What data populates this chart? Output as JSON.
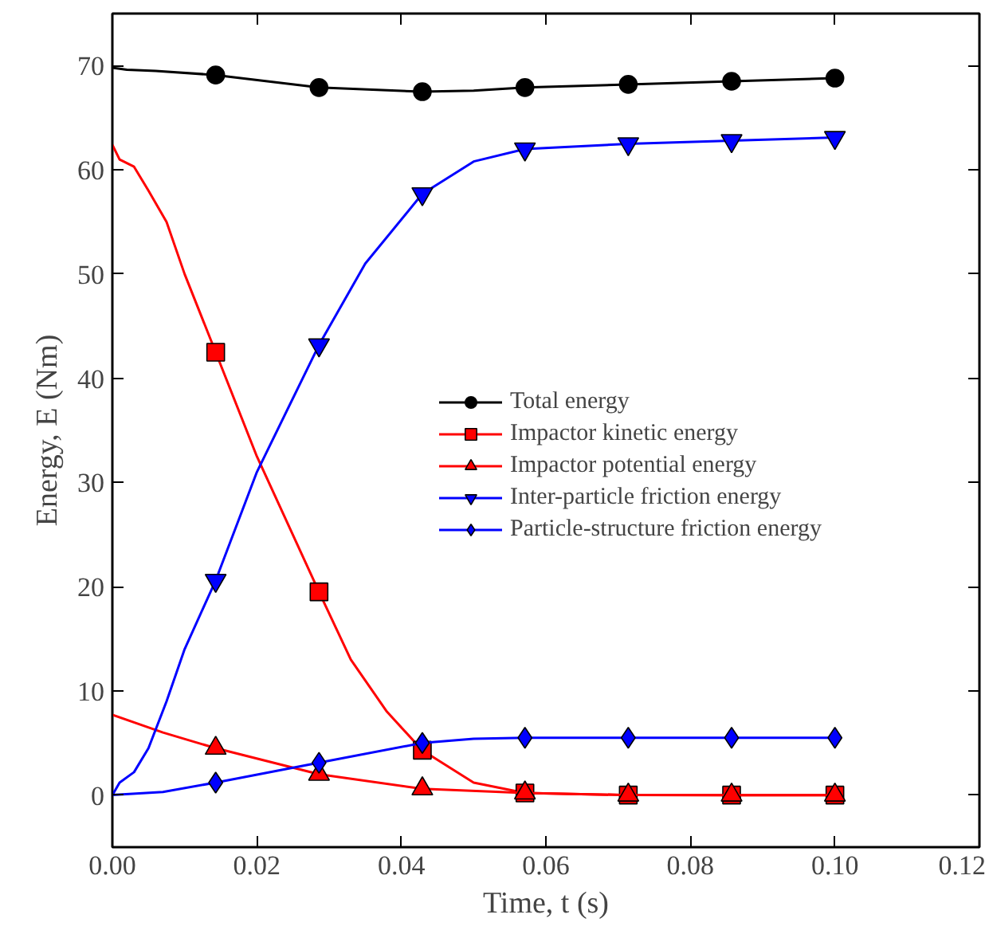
{
  "chart_data": {
    "type": "line",
    "xlabel": "Time, t (s)",
    "ylabel": "Energy, E (Nm)",
    "xlim": [
      0,
      0.12
    ],
    "ylim": [
      -5,
      75
    ],
    "xticks": [
      {
        "value": 0,
        "label": "0.00"
      },
      {
        "value": 0.02,
        "label": "0.02"
      },
      {
        "value": 0.04,
        "label": "0.04"
      },
      {
        "value": 0.06,
        "label": "0.06"
      },
      {
        "value": 0.08,
        "label": "0.08"
      },
      {
        "value": 0.1,
        "label": "0.10"
      },
      {
        "value": 0.12,
        "label": "0.12"
      }
    ],
    "yticks": [
      0,
      10,
      20,
      30,
      40,
      50,
      60,
      70
    ],
    "grid": false,
    "legend": "right",
    "line_style": "solid",
    "x": [
      0.0143,
      0.0286,
      0.0429,
      0.0571,
      0.0714,
      0.0857,
      0.1
    ],
    "series": [
      {
        "color": "#000000",
        "x": [
          0,
          0.002,
          0.006,
          0.0143,
          0.0286,
          0.0429,
          0.05,
          0.0571,
          0.0714,
          0.0857,
          0.1
        ],
        "values": [
          69.8,
          69.6,
          69.5,
          69.1,
          67.9,
          67.5,
          67.6,
          67.9,
          68.2,
          68.5,
          68.8
        ]
      },
      {
        "type": "scatter",
        "name": "Total energy",
        "color": "#000000",
        "marker": "circle",
        "values": [
          69.1,
          67.9,
          67.5,
          67.9,
          68.2,
          68.5,
          68.8
        ]
      },
      {
        "color": "#ff0000",
        "x": [
          0,
          0.001,
          0.003,
          0.005,
          0.0075,
          0.01,
          0.0143,
          0.02,
          0.0286,
          0.033,
          0.038,
          0.0429,
          0.05,
          0.0571,
          0.0714,
          0.0857,
          0.1
        ],
        "values": [
          62.4,
          61.0,
          60.3,
          58,
          55,
          50,
          42.5,
          32.5,
          19.5,
          13,
          8,
          4.3,
          1.2,
          0.2,
          0,
          0,
          0
        ]
      },
      {
        "type": "scatter",
        "name": "Impactor kinetic energy",
        "color": "#ff0000",
        "marker": "square",
        "values": [
          42.5,
          19.5,
          4.3,
          0.2,
          0,
          0,
          0
        ]
      },
      {
        "color": "#ff0000",
        "x": [
          0,
          0.007,
          0.0143,
          0.0286,
          0.0429,
          0.0571,
          0.0714,
          0.0857,
          0.1
        ],
        "values": [
          7.7,
          6.0,
          4.5,
          2.0,
          0.6,
          0.2,
          0,
          0,
          0
        ]
      },
      {
        "type": "scatter",
        "name": "Impactor potential energy",
        "color": "#ff0000",
        "marker": "triangle",
        "values": [
          4.5,
          2.0,
          0.6,
          0.2,
          0,
          0,
          0
        ]
      },
      {
        "color": "#0000ff",
        "x": [
          0,
          0.001,
          0.003,
          0.005,
          0.0075,
          0.01,
          0.0143,
          0.02,
          0.0286,
          0.035,
          0.0429,
          0.05,
          0.0571,
          0.0714,
          0.0857,
          0.1
        ],
        "values": [
          0,
          1.2,
          2.2,
          4.5,
          9,
          14,
          20.6,
          31,
          43.2,
          51,
          57.7,
          60.8,
          62.0,
          62.5,
          62.8,
          63.1
        ]
      },
      {
        "type": "scatter",
        "name": "Inter-particle friction energy",
        "color": "#0000ff",
        "marker": "triangle_down",
        "values": [
          20.6,
          43.2,
          57.7,
          62.0,
          62.5,
          62.8,
          63.1
        ]
      },
      {
        "color": "#0000ff",
        "x": [
          0,
          0.007,
          0.0143,
          0.0286,
          0.0429,
          0.05,
          0.0571,
          0.0714,
          0.0857,
          0.1
        ],
        "values": [
          0,
          0.3,
          1.2,
          3.1,
          5.0,
          5.4,
          5.5,
          5.5,
          5.5,
          5.5
        ]
      },
      {
        "type": "scatter",
        "name": "Particle-structure friction energy",
        "color": "#0000ff",
        "marker": "diamond",
        "values": [
          1.2,
          3.1,
          5.0,
          5.5,
          5.5,
          5.5,
          5.5
        ]
      }
    ]
  }
}
